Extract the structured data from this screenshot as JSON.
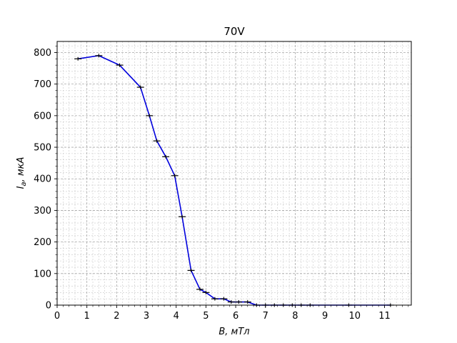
{
  "chart_data": {
    "type": "line",
    "title": "70V",
    "xlabel": "B, мТл",
    "ylabel": "I_a, мкА",
    "xlim": [
      0,
      11.9
    ],
    "ylim": [
      0,
      835
    ],
    "x_ticks": [
      "0",
      "1",
      "2",
      "3",
      "4",
      "5",
      "6",
      "7",
      "8",
      "9",
      "10",
      "11"
    ],
    "y_ticks": [
      "0",
      "100",
      "200",
      "300",
      "400",
      "500",
      "600",
      "700",
      "800"
    ],
    "grid": true,
    "grid_minor": true,
    "line_color": "#0000dd",
    "errorbar_color": "#000000",
    "x_error": 0.12,
    "series": [
      {
        "x": [
          0.7,
          1.4,
          2.1,
          2.8,
          3.1,
          3.35,
          3.65,
          3.95,
          4.2,
          4.5,
          4.8,
          5.0,
          5.3,
          5.6,
          5.85,
          6.1,
          6.4,
          6.7,
          7.0,
          7.3,
          7.6,
          7.9,
          8.2,
          8.5,
          9.8,
          11.2
        ],
        "y": [
          780,
          790,
          760,
          690,
          600,
          520,
          470,
          410,
          280,
          110,
          50,
          40,
          20,
          20,
          10,
          10,
          10,
          0,
          0,
          0,
          0,
          0,
          0,
          0,
          0,
          0
        ]
      }
    ]
  }
}
